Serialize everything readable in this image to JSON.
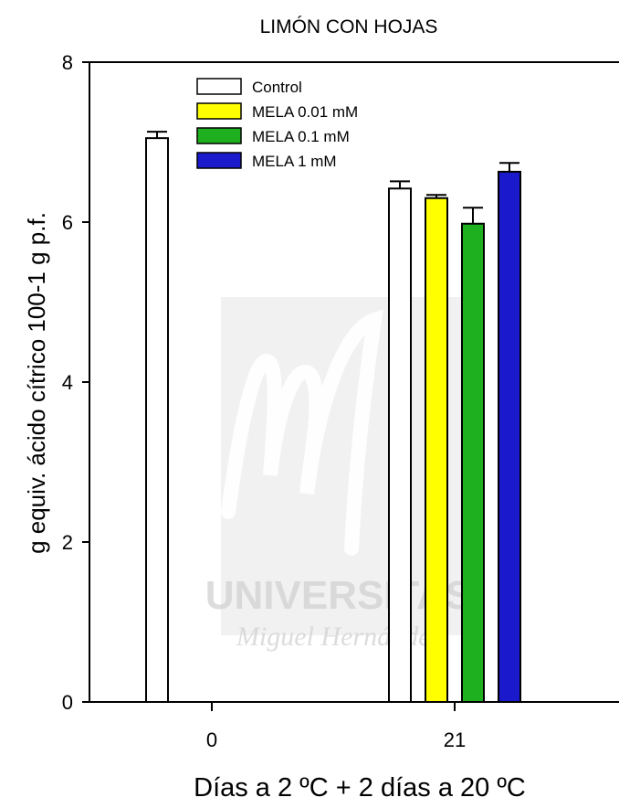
{
  "chart_data": {
    "type": "bar",
    "title": "LIMÓN CON HOJAS",
    "xlabel": "Días a 2 ºC + 2 días a 20 ºC",
    "ylabel": "g equiv. ácido cítrico 100-1 g p.f.",
    "ylim": [
      0,
      8
    ],
    "yticks": [
      0,
      2,
      4,
      6,
      8
    ],
    "categories": [
      "0",
      "21"
    ],
    "legend_position": "top-left",
    "series": [
      {
        "name": "Control",
        "color": "#ffffff",
        "values": [
          7.05,
          6.42
        ],
        "errors": [
          0.08,
          0.09
        ]
      },
      {
        "name": "MELA 0.01 mM",
        "color": "#ffff00",
        "values": [
          null,
          6.3
        ],
        "errors": [
          null,
          0.04
        ]
      },
      {
        "name": "MELA 0.1 mM",
        "color": "#1fb01f",
        "values": [
          null,
          5.98
        ],
        "errors": [
          null,
          0.2
        ]
      },
      {
        "name": "MELA 1 mM",
        "color": "#1a1acc",
        "values": [
          null,
          6.63
        ],
        "errors": [
          null,
          0.11
        ]
      }
    ],
    "watermark": {
      "line1": "UNIVERSITAS",
      "line2": "Miguel Hernández"
    }
  }
}
